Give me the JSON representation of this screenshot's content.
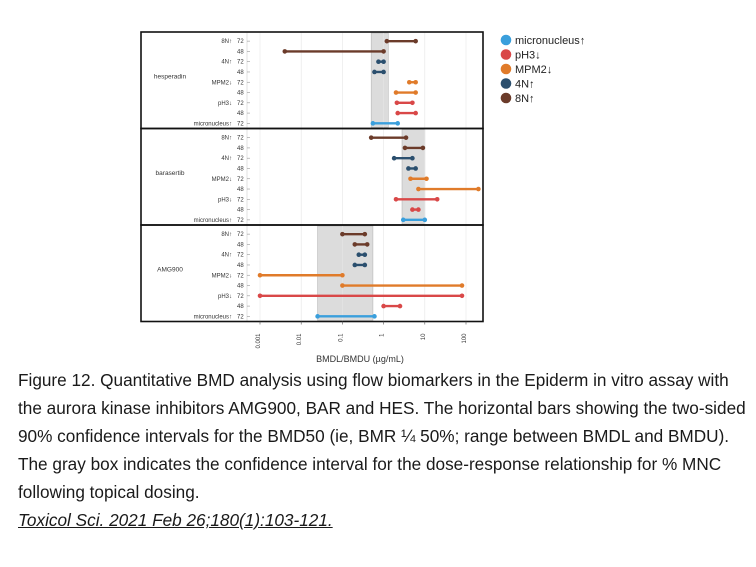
{
  "chart_data": {
    "type": "range",
    "xlabel": "BMDL/BMDU (µg/mL)",
    "x_scale": "log",
    "xlim": [
      0.001,
      300
    ],
    "x_ticks": [
      "0.001",
      "0.01",
      "0.1",
      "1",
      "10",
      "100"
    ],
    "x_tick_values": [
      0.001,
      0.01,
      0.1,
      1,
      10,
      100
    ],
    "legend_position": "top-right",
    "series": [
      {
        "name": "micronucleus↑",
        "color": "#3a9fdc"
      },
      {
        "name": "pH3↓",
        "color": "#d94848"
      },
      {
        "name": "MPM2↓",
        "color": "#e07b2a"
      },
      {
        "name": "4N↑",
        "color": "#2b4f6e"
      },
      {
        "name": "8N↑",
        "color": "#6b3b2a"
      }
    ],
    "panels": [
      {
        "group": "hesperadin",
        "shaded_range": [
          0.5,
          1.3
        ],
        "rows": [
          {
            "label": "8N↑",
            "time": "72",
            "series": "8N↑",
            "low": 1.2,
            "high": 6
          },
          {
            "label": "",
            "time": "48",
            "series": "8N↑",
            "low": 0.004,
            "high": 1.0
          },
          {
            "label": "4N↑",
            "time": "72",
            "series": "4N↑",
            "low": 0.75,
            "high": 1.0
          },
          {
            "label": "",
            "time": "48",
            "series": "4N↑",
            "low": 0.6,
            "high": 1.0
          },
          {
            "label": "MPM2↓",
            "time": "72",
            "series": "MPM2↓",
            "low": 4.2,
            "high": 6
          },
          {
            "label": "",
            "time": "48",
            "series": "MPM2↓",
            "low": 2.0,
            "high": 6
          },
          {
            "label": "pH3↓",
            "time": "72",
            "series": "pH3↓",
            "low": 2.1,
            "high": 5
          },
          {
            "label": "",
            "time": "48",
            "series": "pH3↓",
            "low": 2.2,
            "high": 6
          },
          {
            "label": "micronucleus↑",
            "time": "72",
            "series": "micronucleus↑",
            "low": 0.55,
            "high": 2.2
          }
        ]
      },
      {
        "group": "barasertib",
        "shaded_range": [
          2.8,
          10
        ],
        "rows": [
          {
            "label": "8N↑",
            "time": "72",
            "series": "8N↑",
            "low": 0.5,
            "high": 3.5
          },
          {
            "label": "",
            "time": "48",
            "series": "8N↑",
            "low": 3.3,
            "high": 9
          },
          {
            "label": "4N↑",
            "time": "72",
            "series": "4N↑",
            "low": 1.8,
            "high": 5
          },
          {
            "label": "",
            "time": "48",
            "series": "4N↑",
            "low": 4,
            "high": 6
          },
          {
            "label": "MPM2↓",
            "time": "72",
            "series": "MPM2↓",
            "low": 4.5,
            "high": 11
          },
          {
            "label": "",
            "time": "48",
            "series": "MPM2↓",
            "low": 7,
            "high": 200
          },
          {
            "label": "pH3↓",
            "time": "72",
            "series": "pH3↓",
            "low": 2,
            "high": 20
          },
          {
            "label": "",
            "time": "48",
            "series": "pH3↓",
            "low": 5,
            "high": 7
          },
          {
            "label": "micronucleus↑",
            "time": "72",
            "series": "micronucleus↑",
            "low": 3,
            "high": 10
          }
        ]
      },
      {
        "group": "AMG900",
        "shaded_range": [
          0.025,
          0.55
        ],
        "rows": [
          {
            "label": "8N↑",
            "time": "72",
            "series": "8N↑",
            "low": 0.1,
            "high": 0.35
          },
          {
            "label": "",
            "time": "48",
            "series": "8N↑",
            "low": 0.2,
            "high": 0.4
          },
          {
            "label": "4N↑",
            "time": "72",
            "series": "4N↑",
            "low": 0.25,
            "high": 0.35
          },
          {
            "label": "",
            "time": "48",
            "series": "4N↑",
            "low": 0.2,
            "high": 0.35
          },
          {
            "label": "MPM2↓",
            "time": "72",
            "series": "MPM2↓",
            "low": 0.001,
            "high": 0.1
          },
          {
            "label": "",
            "time": "48",
            "series": "MPM2↓",
            "low": 0.1,
            "high": 80
          },
          {
            "label": "pH3↓",
            "time": "72",
            "series": "pH3↓",
            "low": 0.001,
            "high": 80
          },
          {
            "label": "",
            "time": "48",
            "series": "pH3↓",
            "low": 1,
            "high": 2.5
          },
          {
            "label": "micronucleus↑",
            "time": "72",
            "series": "micronucleus↑",
            "low": 0.025,
            "high": 0.6
          }
        ]
      }
    ]
  },
  "caption": {
    "text": "Figure 12. Quantitative BMD analysis using flow biomarkers in the Epiderm in vitro assay with the aurora kinase inhibitors AMG900, BAR and HES. The horizontal bars showing the two-sided 90% confidence intervals for the BMD50 (ie, BMR ¼ 50%; range between BMDL and BMDU). The gray box indicates the confidence interval for the dose-response relationship for % MNC following topical dosing.",
    "citation": "Toxicol Sci. 2021 Feb 26;180(1):103-121. "
  }
}
